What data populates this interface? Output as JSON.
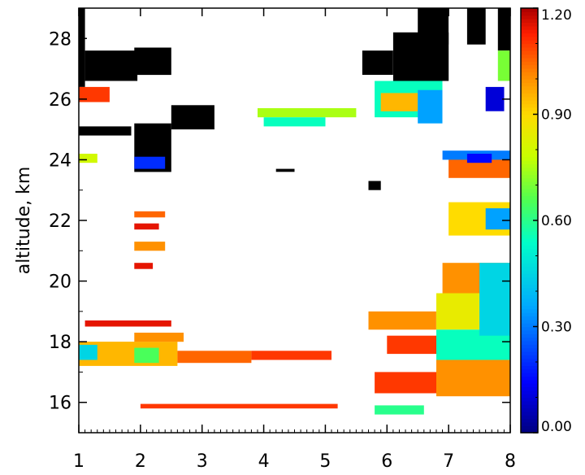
{
  "chart_data": {
    "type": "heatmap",
    "title": "",
    "xlabel": "",
    "ylabel": "altitude, km",
    "xlim": [
      1,
      8
    ],
    "ylim": [
      15,
      29
    ],
    "x_ticks": [
      "1",
      "2",
      "3",
      "4",
      "5",
      "6",
      "7",
      "8"
    ],
    "y_ticks": [
      "16",
      "18",
      "20",
      "22",
      "24",
      "26",
      "28"
    ],
    "colorbar": {
      "range": [
        0.0,
        1.2
      ],
      "ticks": [
        "0.00",
        "0.30",
        "0.60",
        "0.90",
        "1.20"
      ],
      "colormap": "rainbow"
    },
    "missing_color": "#000000",
    "series": [
      {
        "x": [
          1.0,
          1.1
        ],
        "y": [
          26.4,
          29.0
        ],
        "value": null
      },
      {
        "x": [
          1.1,
          1.95
        ],
        "y": [
          26.6,
          27.6
        ],
        "value": null
      },
      {
        "x": [
          1.9,
          2.5
        ],
        "y": [
          26.8,
          27.7
        ],
        "value": null
      },
      {
        "x": [
          1.0,
          1.85
        ],
        "y": [
          24.8,
          25.1
        ],
        "value": null
      },
      {
        "x": [
          1.9,
          2.5
        ],
        "y": [
          23.6,
          25.2
        ],
        "value": null
      },
      {
        "x": [
          2.5,
          3.2
        ],
        "y": [
          25.0,
          25.8
        ],
        "value": null
      },
      {
        "x": [
          5.6,
          6.1
        ],
        "y": [
          26.8,
          27.6
        ],
        "value": null
      },
      {
        "x": [
          6.1,
          7.0
        ],
        "y": [
          26.6,
          28.2
        ],
        "value": null
      },
      {
        "x": [
          6.5,
          7.0
        ],
        "y": [
          27.8,
          29.0
        ],
        "value": null
      },
      {
        "x": [
          7.3,
          7.6
        ],
        "y": [
          27.8,
          29.0
        ],
        "value": null
      },
      {
        "x": [
          7.8,
          8.0
        ],
        "y": [
          27.6,
          29.0
        ],
        "value": null
      },
      {
        "x": [
          5.7,
          5.9
        ],
        "y": [
          23.0,
          23.3
        ],
        "value": null
      },
      {
        "x": [
          4.2,
          4.5
        ],
        "y": [
          23.6,
          23.7
        ],
        "value": null
      },
      {
        "x": [
          1.0,
          2.6
        ],
        "y": [
          17.2,
          18.0
        ],
        "value": 0.95
      },
      {
        "x": [
          1.0,
          1.3
        ],
        "y": [
          17.4,
          17.9
        ],
        "value": 0.45
      },
      {
        "x": [
          1.9,
          2.3
        ],
        "y": [
          17.3,
          17.8
        ],
        "value": 0.65
      },
      {
        "x": [
          2.6,
          3.8
        ],
        "y": [
          17.3,
          17.7
        ],
        "value": 1.05
      },
      {
        "x": [
          3.8,
          5.1
        ],
        "y": [
          17.4,
          17.7
        ],
        "value": 1.1
      },
      {
        "x": [
          1.1,
          2.5
        ],
        "y": [
          18.5,
          18.7
        ],
        "value": 1.15
      },
      {
        "x": [
          1.9,
          2.7
        ],
        "y": [
          18.0,
          18.3
        ],
        "value": 1.0
      },
      {
        "x": [
          2.0,
          5.2
        ],
        "y": [
          15.8,
          15.95
        ],
        "value": 1.1
      },
      {
        "x": [
          1.9,
          2.4
        ],
        "y": [
          22.1,
          22.3
        ],
        "value": 1.05
      },
      {
        "x": [
          1.9,
          2.4
        ],
        "y": [
          21.0,
          21.3
        ],
        "value": 1.0
      },
      {
        "x": [
          1.9,
          2.3
        ],
        "y": [
          21.7,
          21.9
        ],
        "value": 1.15
      },
      {
        "x": [
          1.9,
          2.2
        ],
        "y": [
          20.4,
          20.6
        ],
        "value": 1.15
      },
      {
        "x": [
          3.9,
          5.5
        ],
        "y": [
          25.4,
          25.7
        ],
        "value": 0.75
      },
      {
        "x": [
          4.0,
          5.0
        ],
        "y": [
          25.1,
          25.4
        ],
        "value": 0.55
      },
      {
        "x": [
          5.8,
          6.9
        ],
        "y": [
          25.4,
          26.6
        ],
        "value": 0.55
      },
      {
        "x": [
          5.9,
          6.5
        ],
        "y": [
          25.6,
          26.2
        ],
        "value": 0.95
      },
      {
        "x": [
          6.5,
          6.9
        ],
        "y": [
          25.2,
          26.3
        ],
        "value": 0.35
      },
      {
        "x": [
          5.7,
          6.8
        ],
        "y": [
          18.4,
          19.0
        ],
        "value": 1.0
      },
      {
        "x": [
          5.8,
          6.9
        ],
        "y": [
          16.3,
          17.0
        ],
        "value": 1.1
      },
      {
        "x": [
          5.8,
          6.6
        ],
        "y": [
          15.6,
          15.9
        ],
        "value": 0.6
      },
      {
        "x": [
          6.0,
          6.8
        ],
        "y": [
          17.6,
          18.2
        ],
        "value": 1.1
      },
      {
        "x": [
          6.8,
          8.0
        ],
        "y": [
          16.2,
          17.4
        ],
        "value": 1.0
      },
      {
        "x": [
          6.8,
          8.0
        ],
        "y": [
          17.4,
          18.4
        ],
        "value": 0.55
      },
      {
        "x": [
          6.8,
          8.0
        ],
        "y": [
          18.4,
          19.6
        ],
        "value": 0.85
      },
      {
        "x": [
          6.9,
          8.0
        ],
        "y": [
          19.6,
          20.6
        ],
        "value": 1.0
      },
      {
        "x": [
          7.5,
          8.0
        ],
        "y": [
          18.2,
          20.6
        ],
        "value": 0.45
      },
      {
        "x": [
          7.0,
          8.0
        ],
        "y": [
          21.5,
          22.6
        ],
        "value": 0.9
      },
      {
        "x": [
          7.6,
          8.0
        ],
        "y": [
          21.7,
          22.4
        ],
        "value": 0.35
      },
      {
        "x": [
          7.0,
          8.0
        ],
        "y": [
          23.4,
          24.2
        ],
        "value": 1.05
      },
      {
        "x": [
          6.9,
          8.0
        ],
        "y": [
          24.0,
          24.3
        ],
        "value": 0.3
      },
      {
        "x": [
          7.3,
          7.7
        ],
        "y": [
          23.9,
          24.2
        ],
        "value": 0.15
      },
      {
        "x": [
          7.6,
          7.9
        ],
        "y": [
          25.6,
          26.4
        ],
        "value": 0.1
      },
      {
        "x": [
          7.8,
          8.0
        ],
        "y": [
          26.6,
          27.6
        ],
        "value": 0.7
      },
      {
        "x": [
          1.0,
          1.5
        ],
        "y": [
          25.9,
          26.4
        ],
        "value": 1.1
      },
      {
        "x": [
          1.0,
          1.3
        ],
        "y": [
          23.9,
          24.2
        ],
        "value": 0.8
      },
      {
        "x": [
          1.9,
          2.4
        ],
        "y": [
          23.7,
          24.1
        ],
        "value": 0.2
      }
    ]
  }
}
